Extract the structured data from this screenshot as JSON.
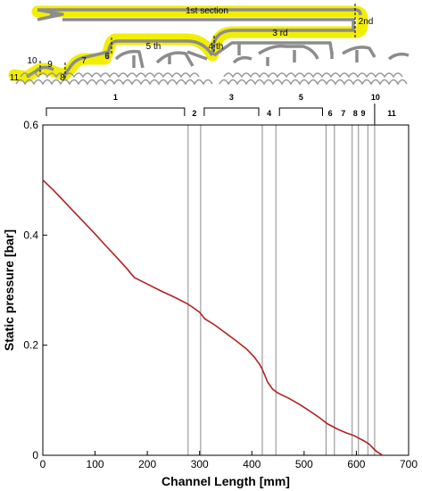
{
  "schematic": {
    "labels": [
      "1st section",
      "2nd",
      "3 rd",
      "4 th",
      "5 th",
      "6",
      "7",
      "8",
      "9",
      "10",
      "11"
    ],
    "highlight_color": "#f2ee00",
    "channel_color": "#8c8c8c"
  },
  "chart_data": {
    "type": "line",
    "xlabel": "Channel Length [mm]",
    "ylabel": "Static pressure [bar]",
    "xlim": [
      0,
      700
    ],
    "ylim": [
      0,
      0.6
    ],
    "xticks": [
      0,
      100,
      200,
      300,
      400,
      500,
      600,
      700
    ],
    "yticks": [
      0,
      0.2,
      0.4,
      0.6
    ],
    "ytick_labels": [
      "0",
      "0.2",
      "0.4",
      "0.6"
    ],
    "grid": false,
    "line_color": "#b22222",
    "series": [
      {
        "x": [
          0,
          20,
          40,
          60,
          80,
          100,
          120,
          140,
          160,
          175,
          200,
          225,
          250,
          275,
          285,
          300,
          310,
          330,
          350,
          370,
          390,
          405,
          415,
          420,
          425,
          430,
          440,
          450,
          470,
          490,
          510,
          530,
          545,
          555,
          565,
          580,
          595,
          605,
          615,
          625,
          630,
          635,
          640,
          645,
          650
        ],
        "y": [
          0.5,
          0.482,
          0.462,
          0.442,
          0.422,
          0.402,
          0.381,
          0.361,
          0.34,
          0.323,
          0.311,
          0.299,
          0.288,
          0.276,
          0.27,
          0.26,
          0.248,
          0.236,
          0.222,
          0.208,
          0.193,
          0.178,
          0.165,
          0.156,
          0.145,
          0.133,
          0.12,
          0.113,
          0.104,
          0.093,
          0.081,
          0.068,
          0.057,
          0.052,
          0.047,
          0.041,
          0.036,
          0.031,
          0.026,
          0.02,
          0.015,
          0.01,
          0.006,
          0.003,
          0
        ]
      }
    ],
    "section_boundaries": [
      278,
      302,
      420,
      446,
      542,
      558,
      592,
      604,
      622,
      635
    ],
    "sections": [
      {
        "label": "1",
        "from": 0,
        "to": 278,
        "brace": true
      },
      {
        "label": "2",
        "from": 278,
        "to": 302,
        "brace": false
      },
      {
        "label": "3",
        "from": 302,
        "to": 420,
        "brace": true
      },
      {
        "label": "4",
        "from": 420,
        "to": 446,
        "brace": false
      },
      {
        "label": "5",
        "from": 446,
        "to": 542,
        "brace": true
      },
      {
        "label": "6",
        "from": 542,
        "to": 558,
        "brace": false
      },
      {
        "label": "7",
        "from": 558,
        "to": 592,
        "brace": false
      },
      {
        "label": "8",
        "from": 592,
        "to": 604,
        "brace": false
      },
      {
        "label": "9",
        "from": 604,
        "to": 622,
        "brace": false
      },
      {
        "label": "10",
        "from": 622,
        "to": 635,
        "brace": false
      },
      {
        "label": "11",
        "from": 635,
        "to": 700,
        "brace": false
      }
    ]
  }
}
